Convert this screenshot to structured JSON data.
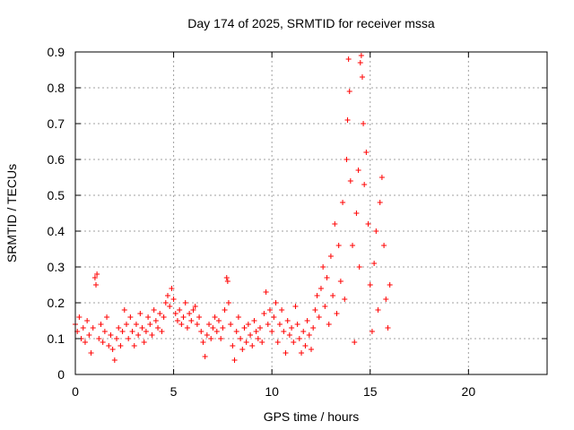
{
  "chart_data": {
    "type": "scatter",
    "title": "Day 174 of 2025, SRMTID for receiver mssa",
    "xlabel": "GPS time / hours",
    "ylabel": "SRMTID / TECUs",
    "xlim": [
      0,
      24
    ],
    "ylim": [
      0,
      0.9
    ],
    "xticks": [
      0,
      5,
      10,
      15,
      20
    ],
    "yticks": [
      0,
      0.1,
      0.2,
      0.3,
      0.4,
      0.5,
      0.6,
      0.7,
      0.8,
      0.9
    ],
    "grid": true,
    "marker": "+",
    "color": "#ff0000",
    "series": [
      {
        "name": "SRMTID",
        "points": [
          [
            0.0,
            0.14
          ],
          [
            0.1,
            0.12
          ],
          [
            0.2,
            0.16
          ],
          [
            0.3,
            0.1
          ],
          [
            0.4,
            0.13
          ],
          [
            0.5,
            0.09
          ],
          [
            0.6,
            0.15
          ],
          [
            0.7,
            0.11
          ],
          [
            0.8,
            0.06
          ],
          [
            0.9,
            0.13
          ],
          [
            1.0,
            0.27
          ],
          [
            1.05,
            0.25
          ],
          [
            1.1,
            0.28
          ],
          [
            1.2,
            0.1
          ],
          [
            1.3,
            0.14
          ],
          [
            1.4,
            0.09
          ],
          [
            1.5,
            0.12
          ],
          [
            1.6,
            0.16
          ],
          [
            1.7,
            0.08
          ],
          [
            1.8,
            0.11
          ],
          [
            1.9,
            0.07
          ],
          [
            2.0,
            0.04
          ],
          [
            2.1,
            0.1
          ],
          [
            2.2,
            0.13
          ],
          [
            2.3,
            0.08
          ],
          [
            2.4,
            0.12
          ],
          [
            2.5,
            0.18
          ],
          [
            2.6,
            0.14
          ],
          [
            2.7,
            0.1
          ],
          [
            2.8,
            0.16
          ],
          [
            2.9,
            0.12
          ],
          [
            3.0,
            0.08
          ],
          [
            3.1,
            0.14
          ],
          [
            3.2,
            0.11
          ],
          [
            3.3,
            0.17
          ],
          [
            3.4,
            0.13
          ],
          [
            3.5,
            0.09
          ],
          [
            3.6,
            0.12
          ],
          [
            3.7,
            0.16
          ],
          [
            3.8,
            0.14
          ],
          [
            3.9,
            0.11
          ],
          [
            4.0,
            0.18
          ],
          [
            4.1,
            0.15
          ],
          [
            4.2,
            0.13
          ],
          [
            4.3,
            0.17
          ],
          [
            4.4,
            0.12
          ],
          [
            4.5,
            0.16
          ],
          [
            4.6,
            0.2
          ],
          [
            4.7,
            0.22
          ],
          [
            4.8,
            0.19
          ],
          [
            4.9,
            0.24
          ],
          [
            5.0,
            0.21
          ],
          [
            5.1,
            0.17
          ],
          [
            5.2,
            0.15
          ],
          [
            5.3,
            0.18
          ],
          [
            5.4,
            0.14
          ],
          [
            5.5,
            0.16
          ],
          [
            5.6,
            0.2
          ],
          [
            5.7,
            0.13
          ],
          [
            5.8,
            0.17
          ],
          [
            5.9,
            0.15
          ],
          [
            6.0,
            0.18
          ],
          [
            6.1,
            0.19
          ],
          [
            6.2,
            0.14
          ],
          [
            6.3,
            0.16
          ],
          [
            6.4,
            0.12
          ],
          [
            6.5,
            0.09
          ],
          [
            6.6,
            0.05
          ],
          [
            6.7,
            0.11
          ],
          [
            6.8,
            0.14
          ],
          [
            6.9,
            0.1
          ],
          [
            7.0,
            0.13
          ],
          [
            7.1,
            0.16
          ],
          [
            7.2,
            0.12
          ],
          [
            7.3,
            0.15
          ],
          [
            7.4,
            0.1
          ],
          [
            7.5,
            0.13
          ],
          [
            7.6,
            0.18
          ],
          [
            7.7,
            0.27
          ],
          [
            7.75,
            0.26
          ],
          [
            7.8,
            0.2
          ],
          [
            7.9,
            0.14
          ],
          [
            8.0,
            0.08
          ],
          [
            8.1,
            0.04
          ],
          [
            8.2,
            0.12
          ],
          [
            8.3,
            0.16
          ],
          [
            8.4,
            0.1
          ],
          [
            8.5,
            0.07
          ],
          [
            8.6,
            0.13
          ],
          [
            8.7,
            0.09
          ],
          [
            8.8,
            0.14
          ],
          [
            8.9,
            0.11
          ],
          [
            9.0,
            0.08
          ],
          [
            9.1,
            0.15
          ],
          [
            9.2,
            0.12
          ],
          [
            9.3,
            0.1
          ],
          [
            9.4,
            0.13
          ],
          [
            9.5,
            0.09
          ],
          [
            9.6,
            0.17
          ],
          [
            9.7,
            0.23
          ],
          [
            9.8,
            0.14
          ],
          [
            9.9,
            0.18
          ],
          [
            10.0,
            0.12
          ],
          [
            10.1,
            0.16
          ],
          [
            10.2,
            0.2
          ],
          [
            10.3,
            0.09
          ],
          [
            10.4,
            0.14
          ],
          [
            10.5,
            0.18
          ],
          [
            10.6,
            0.12
          ],
          [
            10.7,
            0.06
          ],
          [
            10.8,
            0.15
          ],
          [
            10.9,
            0.11
          ],
          [
            11.0,
            0.13
          ],
          [
            11.1,
            0.09
          ],
          [
            11.2,
            0.19
          ],
          [
            11.3,
            0.14
          ],
          [
            11.4,
            0.1
          ],
          [
            11.5,
            0.06
          ],
          [
            11.6,
            0.12
          ],
          [
            11.7,
            0.08
          ],
          [
            11.8,
            0.15
          ],
          [
            11.9,
            0.11
          ],
          [
            12.0,
            0.07
          ],
          [
            12.1,
            0.13
          ],
          [
            12.2,
            0.18
          ],
          [
            12.3,
            0.22
          ],
          [
            12.4,
            0.16
          ],
          [
            12.5,
            0.24
          ],
          [
            12.6,
            0.3
          ],
          [
            12.7,
            0.19
          ],
          [
            12.8,
            0.27
          ],
          [
            12.9,
            0.14
          ],
          [
            13.0,
            0.33
          ],
          [
            13.1,
            0.22
          ],
          [
            13.2,
            0.42
          ],
          [
            13.3,
            0.17
          ],
          [
            13.4,
            0.36
          ],
          [
            13.5,
            0.26
          ],
          [
            13.6,
            0.48
          ],
          [
            13.7,
            0.21
          ],
          [
            13.8,
            0.6
          ],
          [
            13.85,
            0.71
          ],
          [
            13.9,
            0.88
          ],
          [
            13.95,
            0.79
          ],
          [
            14.0,
            0.54
          ],
          [
            14.1,
            0.36
          ],
          [
            14.2,
            0.09
          ],
          [
            14.3,
            0.45
          ],
          [
            14.4,
            0.57
          ],
          [
            14.45,
            0.3
          ],
          [
            14.5,
            0.87
          ],
          [
            14.55,
            0.89
          ],
          [
            14.6,
            0.83
          ],
          [
            14.65,
            0.7
          ],
          [
            14.7,
            0.53
          ],
          [
            14.8,
            0.62
          ],
          [
            14.9,
            0.42
          ],
          [
            15.0,
            0.25
          ],
          [
            15.1,
            0.12
          ],
          [
            15.2,
            0.31
          ],
          [
            15.3,
            0.4
          ],
          [
            15.4,
            0.18
          ],
          [
            15.5,
            0.48
          ],
          [
            15.6,
            0.55
          ],
          [
            15.7,
            0.36
          ],
          [
            15.8,
            0.21
          ],
          [
            15.9,
            0.13
          ],
          [
            16.0,
            0.25
          ]
        ]
      }
    ]
  }
}
